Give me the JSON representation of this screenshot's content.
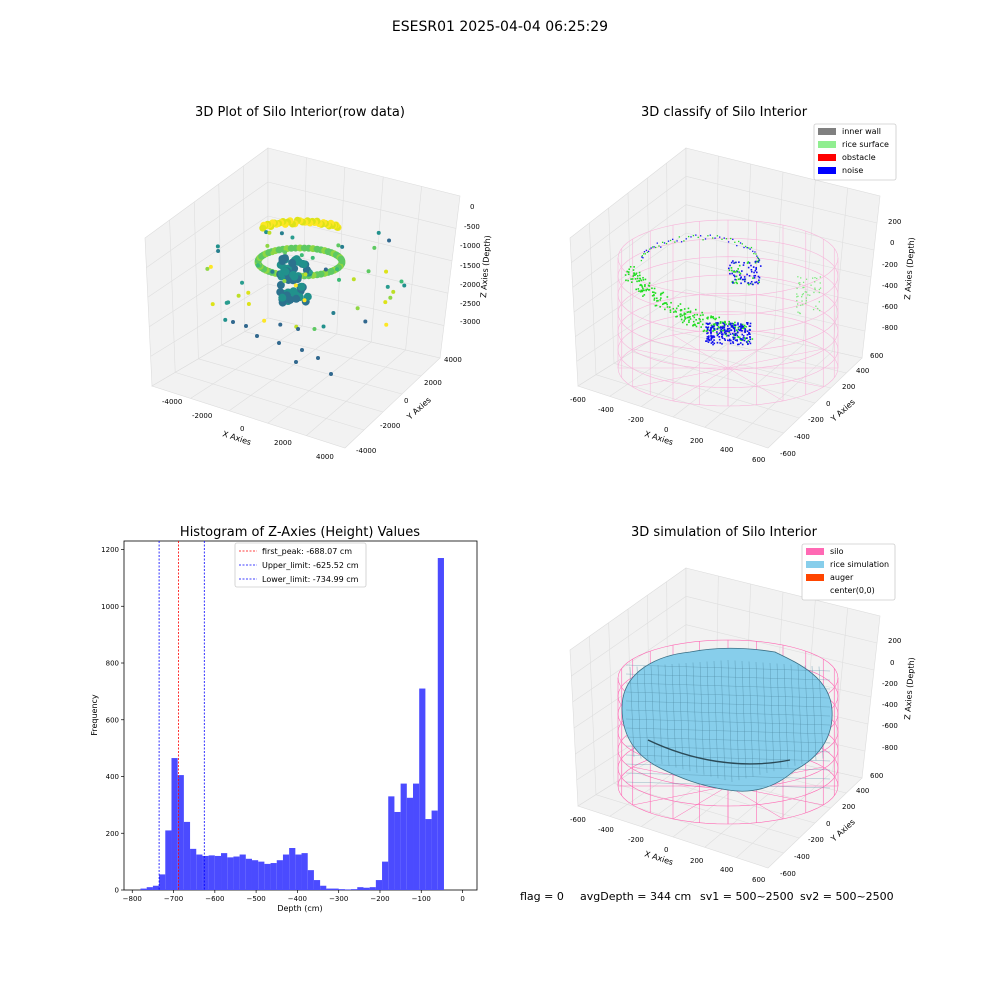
{
  "figure_title": "ESESR01 2025-04-04 06:25:29",
  "status": {
    "flag": "flag = 0",
    "avg_depth": "avgDepth = 344 cm",
    "sv1": "sv1 = 500~2500",
    "sv2": "sv2 = 500~2500"
  },
  "panel1": {
    "title": "3D Plot of Silo Interior(row data)",
    "xlabel": "X Axies",
    "ylabel": "Y Axies",
    "zlabel": "Z Axies (Depth)",
    "xticks": [
      "-4000",
      "-2000",
      "0",
      "2000",
      "4000"
    ],
    "yticks": [
      "-4000",
      "-2000",
      "0",
      "2000",
      "4000"
    ],
    "zticks": [
      "0",
      "-500",
      "-1000",
      "-1500",
      "-2000",
      "-2500",
      "-3000"
    ]
  },
  "panel2": {
    "title": "3D classify of Silo Interior",
    "xlabel": "X Axies",
    "ylabel": "Y Axies",
    "zlabel": "Z Axies (Depth)",
    "xticks": [
      "-600",
      "-400",
      "-200",
      "0",
      "200",
      "400",
      "600"
    ],
    "yticks": [
      "-600",
      "-400",
      "-200",
      "0",
      "200",
      "400",
      "600"
    ],
    "zticks": [
      "200",
      "0",
      "-200",
      "-400",
      "-600",
      "-800"
    ],
    "legend": [
      {
        "label": "inner wall",
        "color": "#808080"
      },
      {
        "label": "rice surface",
        "color": "#90ee90"
      },
      {
        "label": "obstacle",
        "color": "#ff0000"
      },
      {
        "label": "noise",
        "color": "#0000ff"
      }
    ]
  },
  "panel4": {
    "title": "3D simulation of Silo Interior",
    "xlabel": "X Axies",
    "ylabel": "Y Axies",
    "zlabel": "Z Axies (Depth)",
    "xticks": [
      "-600",
      "-400",
      "-200",
      "0",
      "200",
      "400",
      "600"
    ],
    "yticks": [
      "-600",
      "-400",
      "-200",
      "0",
      "200",
      "400",
      "600"
    ],
    "zticks": [
      "200",
      "0",
      "-200",
      "-400",
      "-600",
      "-800"
    ],
    "legend": [
      {
        "label": "silo",
        "color": "#ff69b4"
      },
      {
        "label": "rice simulation",
        "color": "#87ceeb"
      },
      {
        "label": "auger",
        "color": "#ff4500"
      },
      {
        "label": "center(0,0)",
        "color": "#ffffff"
      }
    ]
  },
  "chart_data": {
    "type": "bar",
    "title": "Histogram of Z-Axies (Height) Values",
    "xlabel": "Depth (cm)",
    "ylabel": "Frequency",
    "xlim": [
      -820,
      35
    ],
    "ylim": [
      0,
      1230
    ],
    "xticks": [
      -800,
      -700,
      -600,
      -500,
      -400,
      -300,
      -200,
      -100,
      0
    ],
    "yticks": [
      0,
      200,
      400,
      600,
      800,
      1000,
      1200
    ],
    "bin_width": 15,
    "bin_starts": [
      -780,
      -765,
      -750,
      -735,
      -720,
      -705,
      -690,
      -675,
      -660,
      -645,
      -630,
      -615,
      -600,
      -585,
      -570,
      -555,
      -540,
      -525,
      -510,
      -495,
      -480,
      -465,
      -450,
      -435,
      -420,
      -405,
      -390,
      -375,
      -360,
      -345,
      -330,
      -315,
      -300,
      -285,
      -270,
      -255,
      -240,
      -225,
      -210,
      -195,
      -180,
      -165,
      -150,
      -135,
      -120,
      -105,
      -90,
      -75,
      -60,
      -45,
      -30,
      -15
    ],
    "values": [
      5,
      10,
      15,
      55,
      210,
      465,
      405,
      240,
      145,
      125,
      120,
      122,
      120,
      130,
      115,
      118,
      125,
      110,
      105,
      100,
      92,
      95,
      105,
      125,
      148,
      125,
      130,
      70,
      35,
      15,
      5,
      5,
      3,
      2,
      3,
      10,
      8,
      10,
      35,
      100,
      330,
      275,
      375,
      325,
      375,
      710,
      250,
      280,
      1170,
      0,
      0,
      0
    ],
    "vlines": [
      {
        "label": "first_peak: -688.07 cm",
        "x": -688.07,
        "color": "#ff0000"
      },
      {
        "label": "Upper_limit: -625.52 cm",
        "x": -625.52,
        "color": "#0000ff"
      },
      {
        "label": "Lower_limit: -734.99 cm",
        "x": -734.99,
        "color": "#0000ff"
      }
    ],
    "bar_color": "#4b4bff"
  }
}
